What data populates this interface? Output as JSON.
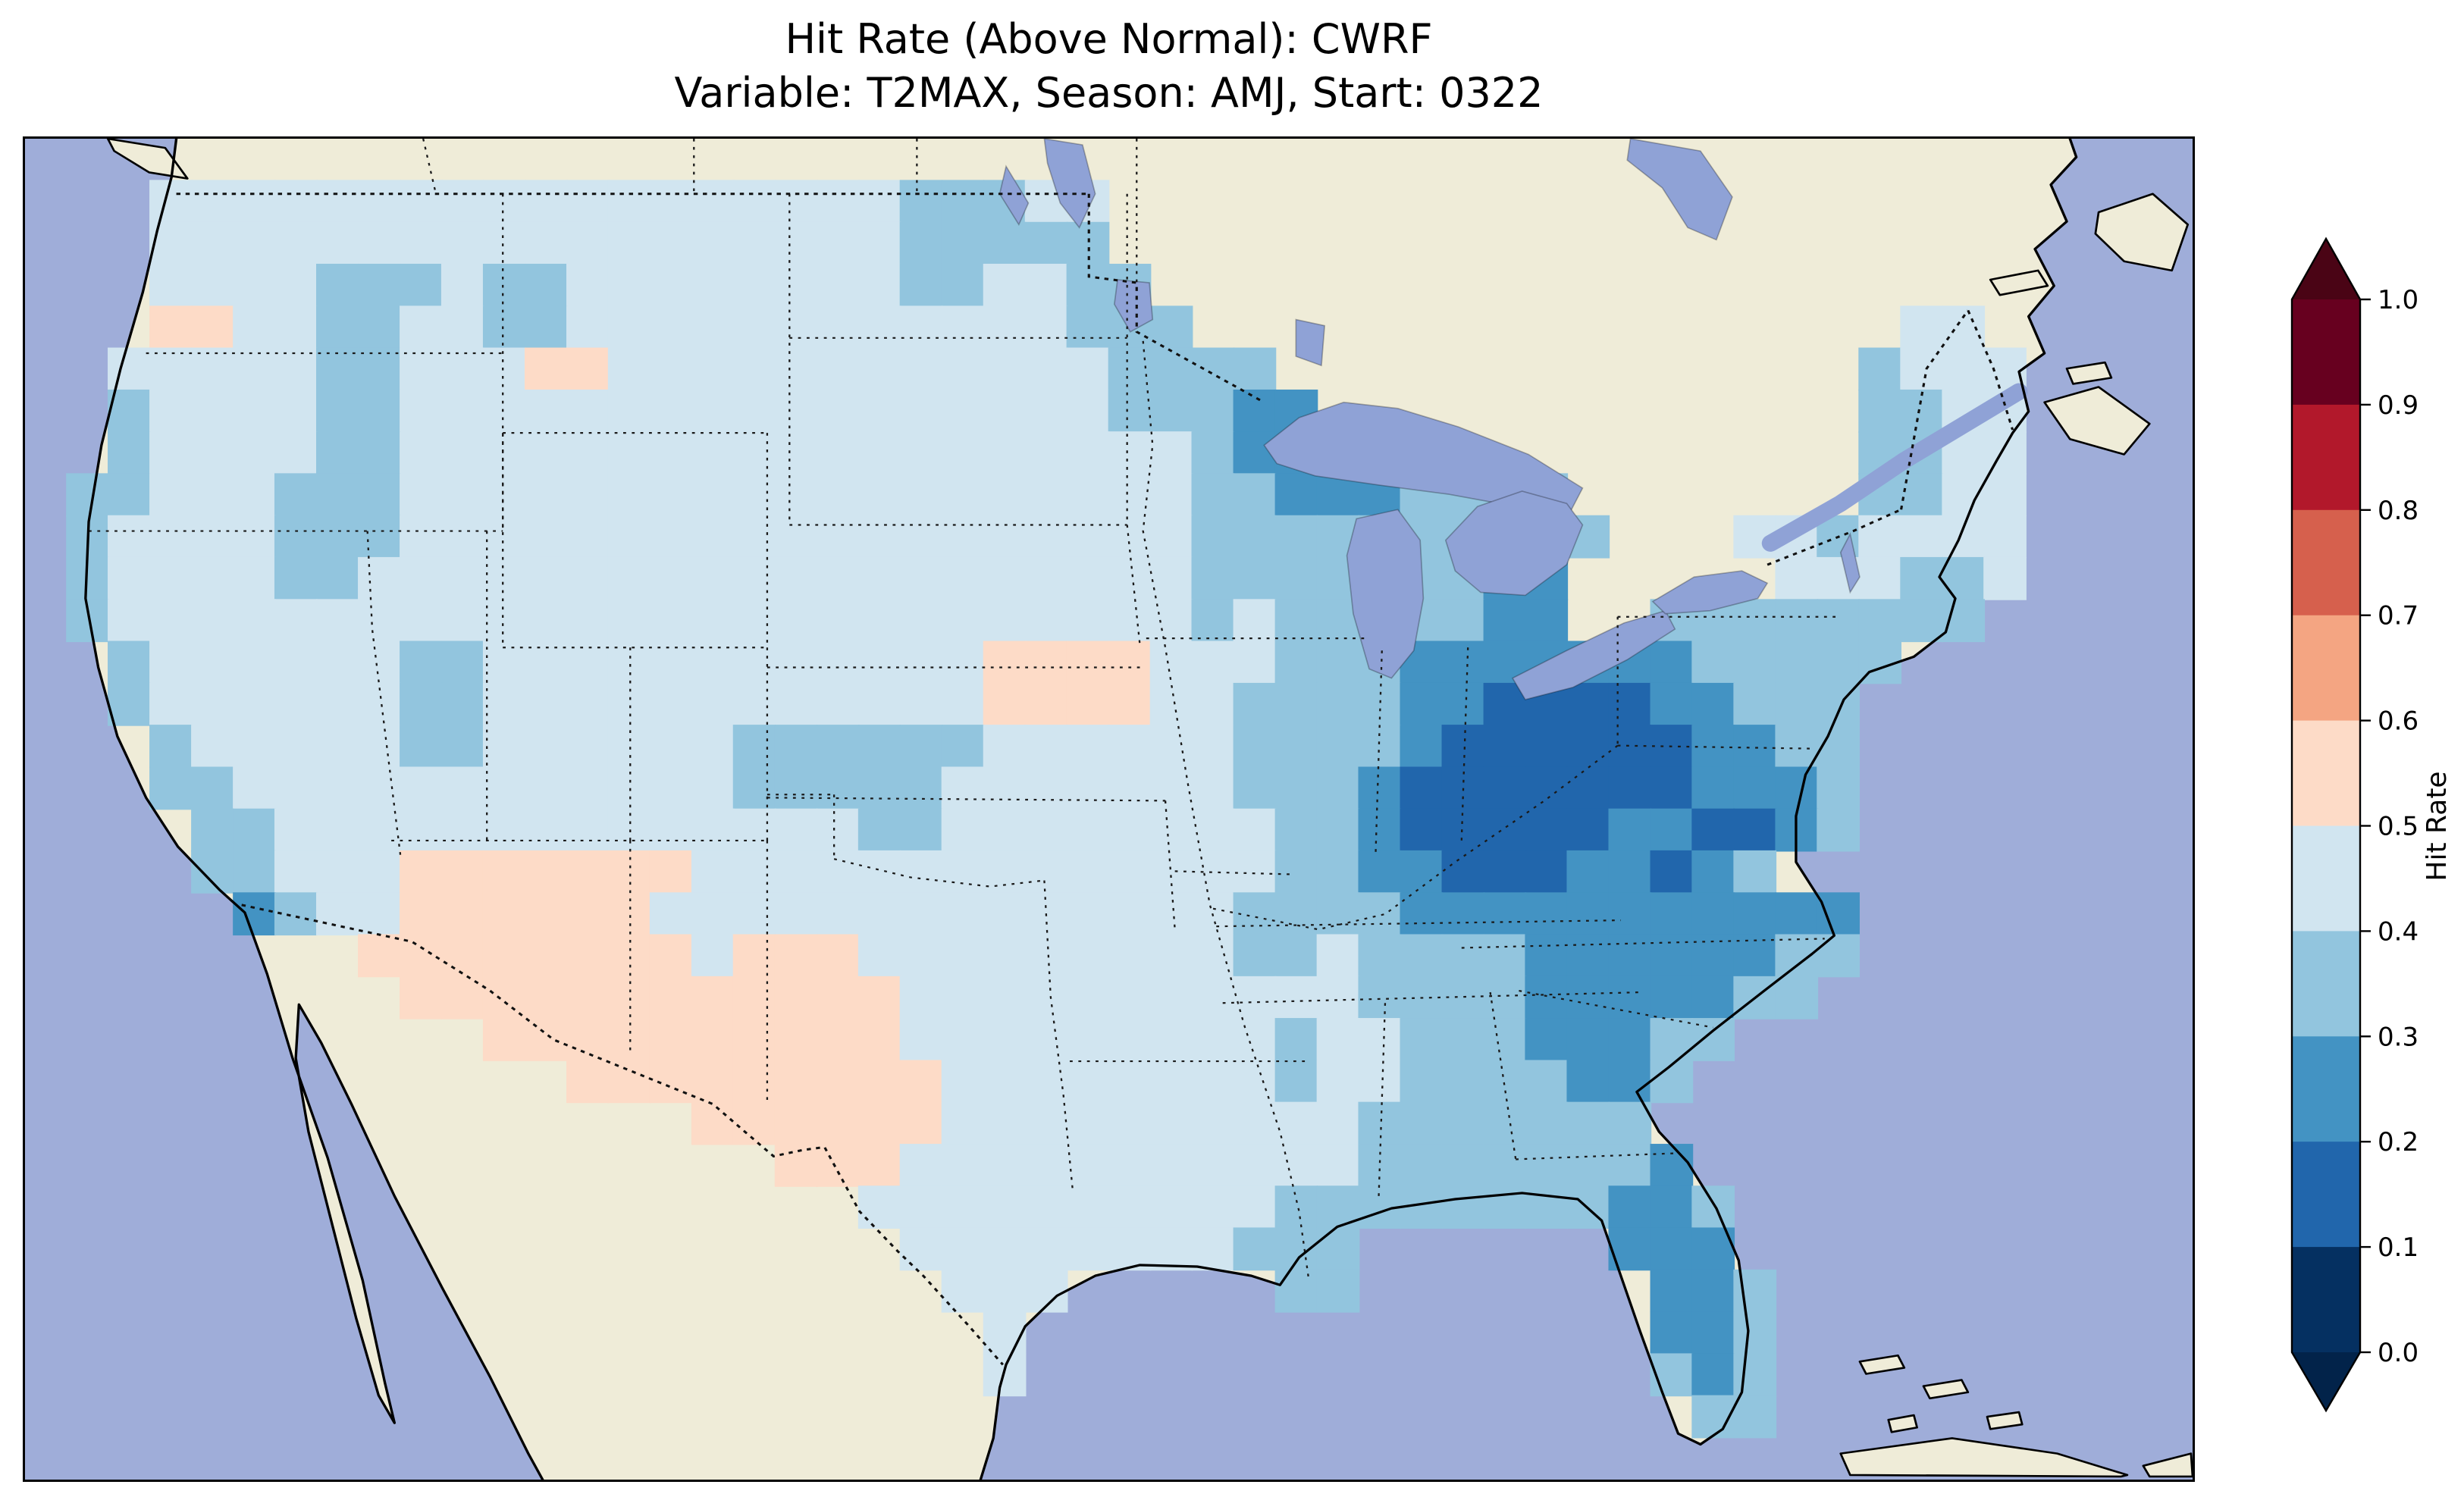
{
  "figure": {
    "title_line1": "Hit Rate (Above Normal): CWRF",
    "title_line2": "Variable: T2MAX, Season: AMJ, Start: 0322"
  },
  "colorbar": {
    "label": "Hit Rate",
    "tick_labels": [
      "1.0",
      "0.9",
      "0.8",
      "0.7",
      "0.6",
      "0.5",
      "0.4",
      "0.3",
      "0.2",
      "0.1",
      "0.0"
    ],
    "segment_colors_top_to_bottom": [
      "#67001f",
      "#b2182b",
      "#d6604d",
      "#f4a582",
      "#fddbc7",
      "#d1e5f0",
      "#92c5de",
      "#4393c3",
      "#2166ac",
      "#053061"
    ],
    "over_arrow_color": "#4a0415",
    "under_arrow_color": "#02234a"
  },
  "map": {
    "ocean_color": "#9fadd9",
    "land_color": "#efecd8",
    "lake_color": "#8fa2d6",
    "bin_colors": {
      "a": "#fddbc7",
      "b": "#d1e5f0",
      "c": "#92c5de",
      "d": "#4393c3",
      "e": "#2166ac",
      "f": "#053061"
    },
    "bin_value_ranges": {
      "a": "0.5-0.6",
      "b": "0.4-0.5",
      "c": "0.3-0.4",
      "d": "0.2-0.3",
      "e": "0.1-0.2",
      "f": "0.0-0.1"
    },
    "grid": {
      "cols": 52,
      "rows": 32,
      "cell_rows": [
        "....................................................",
        "...bbbbbbbbbbbbbbbbbbcccbb..........................",
        "...bbbbbbbbbbbbbbbbbbccccc..........................",
        "...bbbbcccbccbbbbbbbbccbbcc.........................",
        "...aabbccbbccbbbbbbbbbbbbccc.................bb.....",
        "..bbbbbccbbbaabbbbbbbbbbbbcccc..............cbbb....",
        "..cbbbbccbbbbbbbbbbbbbbbbbcccdd.............ccbb....",
        "..cbbbbccbbbbbbbbbbbbbbbbbbbcddc............ccbb....",
        ".ccbbbcccbbbbbbbbbbbbbbbbbbbccdddcccc.......ccbb....",
        ".cbbbbcccbbbbbbbbbbbbbbbbbbbcccccccccc...bbcbbbb....",
        ".cbbbbccbbbbbbbbbbbbbbbbbbbbcccccccdd.....bbbccb....",
        ".cbbbbbbbbbbbbbbbbbbbbbbbbbbcbcccccdd..cccccccc.....",
        "..cbbbbbbccbbbbbbbbbbbbaaaabbbcccdddddddccccc.......",
        "..cbbbbbbccbbbbbbbbbbbbaaaabbccccddeeeeddccc........",
        "...cbbbbbccbbbbbbccccccbbbbbbccccdeeeeeeddcc........",
        "...ccbbbbbbbbbbbbcccccbbbbbbbcccdeeeeeeedddc........",
        "....ccbbbbbbbbbbbbbbccbbbbbbbbccdeeeeeddeedc........",
        "....ccbbbaaaaaaabbbbbbbbbbbbbbccddeeeddedc.........",
        ".....dcbbaaaaaabbbbbbbbbbbbbbccccddddddddddd........",
        "........aaaaaaaabaaabbbbbbbbbccbccccddddddcc........",
        ".........aaaaaaaaaaaabbbbbbbbbbbccccdddddcc.........",
        "...........aaaaaaaaaabbbbbbbbbcbbcccdddcc...........",
        ".............aaaaaaaaabbbbbbbbcbbccccddc............",
        "................aaaaaabbbbbbbbbbccccccc.............",
        "..................aaabbbbbbbbbbbcccccccd............",
        "....................bbbbbbbbbbccccccccddc...........",
        ".....................bbbbbbbbccc......ddd...........",
        "......................bbb.....cc.......ddc..........",
        ".......................b...............ddc..........",
        ".......................b...............cdc..........",
        "........................................cc..........",
        "...................................................."
      ]
    }
  },
  "chart_data": {
    "type": "heatmap",
    "title": "Hit Rate (Above Normal): CWRF",
    "subtitle": "Variable: T2MAX, Season: AMJ, Start: 0322",
    "colorbar_label": "Hit Rate",
    "colorbar_range": [
      0.0,
      1.0
    ],
    "colorbar_tick_step": 0.1,
    "value_bins": [
      "0.0-0.1",
      "0.1-0.2",
      "0.2-0.3",
      "0.3-0.4",
      "0.4-0.5",
      "0.5-0.6",
      "0.6-0.7",
      "0.7-0.8",
      "0.8-0.9",
      "0.9-1.0"
    ],
    "bin_colors_low_to_high": [
      "#053061",
      "#2166ac",
      "#4393c3",
      "#92c5de",
      "#d1e5f0",
      "#fddbc7",
      "#f4a582",
      "#d6604d",
      "#b2182b",
      "#67001f"
    ],
    "summary": "Gridded hit-rate field over CONUS: mostly 0.3-0.5; lowest values 0.1-0.3 over the Ohio Valley, Mid-Atlantic and Southeast incl. Florida; 0.5-0.6 patches over the Desert Southwest, west Texas, central Plains and NW Washington coast."
  }
}
